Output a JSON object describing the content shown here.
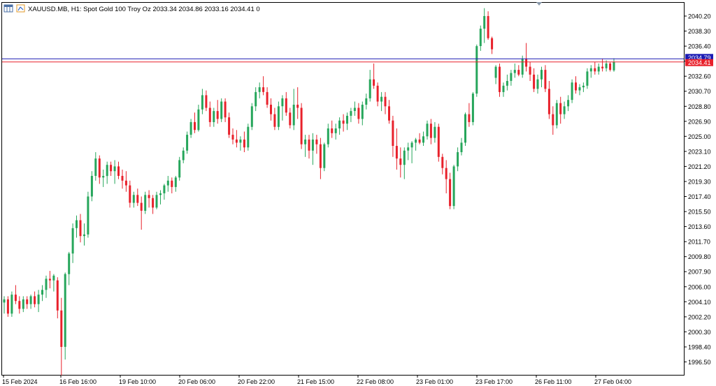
{
  "header": {
    "symbol_line": "XAUUSD.MB, H1:  Spot Gold 100 Troy Oz  2033.34 2034.86 2033.16 2034.41  0",
    "icon": "chart-window-icon"
  },
  "colors": {
    "bull": "#26a65b",
    "bear": "#e8212b",
    "ask_line": "#1c1cb4",
    "bid_line": "#e8212b",
    "axis": "#000000",
    "background": "#ffffff"
  },
  "chart_data": {
    "type": "candlestick",
    "symbol": "XAUUSD.MB",
    "timeframe": "H1",
    "description": "Spot Gold 100 Troy Oz",
    "ohlc_last": {
      "open": 2033.34,
      "high": 2034.86,
      "low": 2033.16,
      "close": 2034.41,
      "volume": 0
    },
    "ask_price": "2034.79",
    "bid_price": "2034.41",
    "ylim": [
      1994.0,
      2042.0
    ],
    "y_ticks": [
      "2040.20",
      "2038.30",
      "2036.40",
      "2034.50",
      "2032.60",
      "2030.70",
      "2028.80",
      "2026.90",
      "2025.00",
      "2023.10",
      "2021.20",
      "2019.30",
      "2017.40",
      "2015.50",
      "2013.60",
      "2011.70",
      "2009.80",
      "2007.90",
      "2006.00",
      "2004.10",
      "2002.20",
      "2000.30",
      "1998.40",
      "1996.50"
    ],
    "x_ticks": [
      "15 Feb 2024",
      "16 Feb 16:00",
      "19 Feb 10:00",
      "20 Feb 06:00",
      "20 Feb 22:00",
      "21 Feb 15:00",
      "22 Feb 08:00",
      "23 Feb 01:00",
      "23 Feb 17:00",
      "26 Feb 11:00",
      "27 Feb 04:00"
    ],
    "candles": [
      [
        2004.0,
        2004.8,
        2002.6,
        2004.4
      ],
      [
        2004.4,
        2004.8,
        2002.2,
        2002.6
      ],
      [
        2002.6,
        2005.4,
        2002.2,
        2005.0
      ],
      [
        2005.0,
        2006.2,
        2003.8,
        2004.2
      ],
      [
        2004.2,
        2004.8,
        2002.6,
        2003.2
      ],
      [
        2003.2,
        2004.8,
        2002.8,
        2004.4
      ],
      [
        2004.4,
        2004.8,
        2003.2,
        2003.8
      ],
      [
        2003.8,
        2005.0,
        2003.2,
        2004.8
      ],
      [
        2004.8,
        2005.4,
        2003.4,
        2003.8
      ],
      [
        2003.8,
        2005.6,
        2002.8,
        2005.0
      ],
      [
        2005.0,
        2006.2,
        2004.2,
        2005.6
      ],
      [
        2005.6,
        2007.4,
        2004.6,
        2007.0
      ],
      [
        2007.0,
        2008.0,
        2005.8,
        2006.8
      ],
      [
        2006.8,
        2007.6,
        2005.4,
        2007.4
      ],
      [
        2006.8,
        2007.2,
        2002.0,
        2003.0
      ],
      [
        2003.0,
        2004.6,
        1994.8,
        1998.4
      ],
      [
        1998.4,
        2007.8,
        1996.8,
        2007.6
      ],
      [
        2007.6,
        2010.4,
        2006.2,
        2010.2
      ],
      [
        2010.2,
        2014.0,
        2009.0,
        2013.4
      ],
      [
        2013.4,
        2015.0,
        2012.2,
        2014.4
      ],
      [
        2014.4,
        2015.2,
        2011.6,
        2012.4
      ],
      [
        2012.4,
        2014.0,
        2011.2,
        2012.6
      ],
      [
        2012.6,
        2018.0,
        2012.2,
        2017.4
      ],
      [
        2017.4,
        2020.6,
        2016.8,
        2020.0
      ],
      [
        2020.0,
        2023.0,
        2019.4,
        2022.2
      ],
      [
        2022.2,
        2022.6,
        2019.0,
        2019.8
      ],
      [
        2019.8,
        2020.8,
        2018.6,
        2020.0
      ],
      [
        2020.0,
        2021.8,
        2019.0,
        2021.4
      ],
      [
        2021.4,
        2021.8,
        2020.0,
        2020.6
      ],
      [
        2020.6,
        2022.0,
        2019.0,
        2021.2
      ],
      [
        2021.2,
        2021.8,
        2019.6,
        2020.0
      ],
      [
        2020.0,
        2020.8,
        2018.4,
        2019.4
      ],
      [
        2019.4,
        2020.6,
        2018.0,
        2018.8
      ],
      [
        2018.8,
        2019.4,
        2016.0,
        2016.6
      ],
      [
        2016.6,
        2018.0,
        2016.0,
        2017.6
      ],
      [
        2017.6,
        2018.4,
        2016.2,
        2016.6
      ],
      [
        2016.6,
        2017.4,
        2013.2,
        2015.6
      ],
      [
        2015.6,
        2018.0,
        2015.2,
        2017.6
      ],
      [
        2017.6,
        2018.2,
        2016.0,
        2017.2
      ],
      [
        2017.2,
        2017.6,
        2015.2,
        2016.0
      ],
      [
        2016.0,
        2018.0,
        2015.8,
        2017.6
      ],
      [
        2017.6,
        2018.2,
        2016.4,
        2017.8
      ],
      [
        2017.8,
        2019.0,
        2017.0,
        2018.8
      ],
      [
        2018.8,
        2020.0,
        2018.0,
        2019.4
      ],
      [
        2019.4,
        2019.8,
        2017.8,
        2018.6
      ],
      [
        2018.6,
        2020.0,
        2018.0,
        2019.8
      ],
      [
        2019.8,
        2022.4,
        2019.4,
        2022.0
      ],
      [
        2022.0,
        2023.6,
        2021.6,
        2023.2
      ],
      [
        2023.2,
        2025.6,
        2022.8,
        2025.2
      ],
      [
        2025.2,
        2027.2,
        2024.8,
        2026.8
      ],
      [
        2026.8,
        2028.0,
        2025.4,
        2025.8
      ],
      [
        2025.8,
        2029.0,
        2025.6,
        2028.4
      ],
      [
        2028.4,
        2031.0,
        2027.8,
        2030.2
      ],
      [
        2030.2,
        2030.8,
        2028.2,
        2028.6
      ],
      [
        2028.6,
        2029.4,
        2026.2,
        2026.8
      ],
      [
        2026.8,
        2028.6,
        2026.2,
        2028.2
      ],
      [
        2028.2,
        2029.6,
        2026.6,
        2027.2
      ],
      [
        2027.2,
        2029.8,
        2026.8,
        2029.4
      ],
      [
        2029.4,
        2029.8,
        2026.8,
        2027.4
      ],
      [
        2027.4,
        2028.0,
        2024.8,
        2025.2
      ],
      [
        2025.2,
        2026.0,
        2024.0,
        2024.6
      ],
      [
        2024.6,
        2025.8,
        2023.6,
        2024.2
      ],
      [
        2024.2,
        2025.0,
        2023.2,
        2024.6
      ],
      [
        2024.6,
        2025.6,
        2023.0,
        2023.6
      ],
      [
        2023.6,
        2026.6,
        2023.2,
        2026.2
      ],
      [
        2026.2,
        2029.2,
        2025.8,
        2028.8
      ],
      [
        2028.8,
        2031.2,
        2028.2,
        2030.6
      ],
      [
        2030.6,
        2031.8,
        2029.8,
        2031.2
      ],
      [
        2031.2,
        2032.6,
        2030.2,
        2030.6
      ],
      [
        2030.6,
        2031.2,
        2028.6,
        2029.0
      ],
      [
        2029.0,
        2029.8,
        2027.0,
        2027.8
      ],
      [
        2027.8,
        2028.6,
        2025.8,
        2026.2
      ],
      [
        2026.2,
        2029.4,
        2025.8,
        2028.8
      ],
      [
        2028.8,
        2030.2,
        2027.0,
        2029.8
      ],
      [
        2029.8,
        2030.6,
        2027.6,
        2028.0
      ],
      [
        2028.0,
        2028.6,
        2026.0,
        2026.4
      ],
      [
        2026.4,
        2031.0,
        2025.8,
        2029.0
      ],
      [
        2029.0,
        2031.2,
        2027.2,
        2028.6
      ],
      [
        2028.6,
        2029.2,
        2023.4,
        2024.0
      ],
      [
        2024.0,
        2025.2,
        2022.4,
        2024.6
      ],
      [
        2024.6,
        2025.2,
        2022.2,
        2023.2
      ],
      [
        2023.2,
        2025.4,
        2021.4,
        2024.6
      ],
      [
        2024.6,
        2025.2,
        2022.8,
        2024.0
      ],
      [
        2024.0,
        2024.8,
        2019.6,
        2021.0
      ],
      [
        2021.0,
        2024.2,
        2020.6,
        2024.0
      ],
      [
        2024.0,
        2026.6,
        2023.6,
        2026.0
      ],
      [
        2026.0,
        2027.0,
        2024.8,
        2025.4
      ],
      [
        2025.4,
        2026.6,
        2024.6,
        2026.0
      ],
      [
        2026.0,
        2027.4,
        2025.2,
        2027.0
      ],
      [
        2027.0,
        2027.8,
        2025.6,
        2026.6
      ],
      [
        2026.6,
        2028.0,
        2025.8,
        2027.6
      ],
      [
        2027.6,
        2028.6,
        2026.8,
        2028.2
      ],
      [
        2028.2,
        2029.4,
        2027.6,
        2028.6
      ],
      [
        2028.6,
        2029.2,
        2026.6,
        2027.2
      ],
      [
        2027.2,
        2029.4,
        2026.4,
        2029.0
      ],
      [
        2029.0,
        2030.4,
        2028.4,
        2029.8
      ],
      [
        2029.8,
        2033.4,
        2029.4,
        2032.2
      ],
      [
        2032.2,
        2034.2,
        2031.0,
        2031.4
      ],
      [
        2031.4,
        2031.8,
        2028.8,
        2029.4
      ],
      [
        2029.4,
        2030.6,
        2028.2,
        2030.0
      ],
      [
        2030.0,
        2030.6,
        2027.8,
        2028.8
      ],
      [
        2028.8,
        2029.6,
        2026.6,
        2027.0
      ],
      [
        2027.0,
        2027.6,
        2022.4,
        2023.8
      ],
      [
        2023.8,
        2026.0,
        2020.8,
        2022.2
      ],
      [
        2022.2,
        2023.6,
        2019.8,
        2021.4
      ],
      [
        2021.4,
        2023.6,
        2019.6,
        2023.2
      ],
      [
        2023.2,
        2024.2,
        2022.0,
        2023.6
      ],
      [
        2023.6,
        2024.4,
        2021.6,
        2024.2
      ],
      [
        2024.2,
        2024.8,
        2023.2,
        2024.6
      ],
      [
        2024.6,
        2025.4,
        2024.0,
        2024.2
      ],
      [
        2024.2,
        2025.6,
        2023.8,
        2025.0
      ],
      [
        2025.0,
        2027.0,
        2024.6,
        2026.6
      ],
      [
        2026.6,
        2027.2,
        2024.0,
        2024.8
      ],
      [
        2024.8,
        2026.8,
        2024.2,
        2026.2
      ],
      [
        2026.2,
        2026.6,
        2021.8,
        2022.4
      ],
      [
        2022.4,
        2022.8,
        2020.2,
        2021.0
      ],
      [
        2021.0,
        2022.0,
        2017.8,
        2019.6
      ],
      [
        2019.6,
        2020.4,
        2015.8,
        2016.2
      ],
      [
        2016.2,
        2021.4,
        2015.8,
        2021.2
      ],
      [
        2021.2,
        2023.6,
        2020.6,
        2023.0
      ],
      [
        2023.0,
        2024.8,
        2022.6,
        2024.2
      ],
      [
        2024.2,
        2028.0,
        2023.8,
        2027.8
      ],
      [
        2027.8,
        2029.2,
        2026.2,
        2026.8
      ],
      [
        2026.8,
        2030.6,
        2026.4,
        2030.4
      ],
      [
        2030.4,
        2036.6,
        2030.0,
        2036.4
      ],
      [
        2036.4,
        2039.0,
        2035.8,
        2038.6
      ],
      [
        2038.6,
        2041.2,
        2036.8,
        2040.2
      ],
      [
        2040.2,
        2040.8,
        2037.2,
        2037.4
      ],
      [
        2037.4,
        2037.6,
        2035.4,
        2036.0
      ],
      [
        2032.4,
        2034.0,
        2031.6,
        2033.8
      ],
      [
        2033.8,
        2034.2,
        2030.0,
        2030.6
      ],
      [
        2030.6,
        2031.8,
        2030.0,
        2031.4
      ],
      [
        2031.4,
        2032.8,
        2030.8,
        2032.0
      ],
      [
        2032.0,
        2033.4,
        2031.4,
        2033.0
      ],
      [
        2033.0,
        2034.2,
        2032.4,
        2033.4
      ],
      [
        2033.4,
        2034.0,
        2032.6,
        2032.8
      ],
      [
        2032.8,
        2035.2,
        2032.4,
        2034.8
      ],
      [
        2034.8,
        2036.8,
        2033.2,
        2033.8
      ],
      [
        2033.8,
        2034.4,
        2032.0,
        2032.8
      ],
      [
        2032.8,
        2033.6,
        2030.6,
        2031.0
      ],
      [
        2031.0,
        2032.8,
        2030.4,
        2032.2
      ],
      [
        2032.2,
        2033.8,
        2031.2,
        2033.4
      ],
      [
        2033.4,
        2034.0,
        2030.6,
        2031.0
      ],
      [
        2031.0,
        2032.0,
        2027.2,
        2027.8
      ],
      [
        2027.8,
        2028.8,
        2025.2,
        2026.4
      ],
      [
        2026.4,
        2029.6,
        2026.0,
        2029.2
      ],
      [
        2029.2,
        2030.0,
        2026.6,
        2027.8
      ],
      [
        2027.8,
        2029.4,
        2027.2,
        2028.8
      ],
      [
        2028.8,
        2030.2,
        2028.2,
        2029.6
      ],
      [
        2029.6,
        2032.2,
        2029.2,
        2031.8
      ],
      [
        2031.8,
        2032.6,
        2030.4,
        2030.8
      ],
      [
        2030.8,
        2031.6,
        2030.2,
        2031.2
      ],
      [
        2031.2,
        2031.8,
        2030.6,
        2031.4
      ],
      [
        2031.4,
        2033.6,
        2031.0,
        2033.2
      ],
      [
        2033.2,
        2034.0,
        2032.4,
        2033.6
      ],
      [
        2033.6,
        2034.4,
        2032.8,
        2033.2
      ],
      [
        2033.2,
        2034.2,
        2032.8,
        2033.8
      ],
      [
        2033.8,
        2034.8,
        2033.2,
        2033.6
      ],
      [
        2033.6,
        2034.6,
        2033.2,
        2034.2
      ],
      [
        2034.2,
        2034.4,
        2033.2,
        2033.4
      ],
      [
        2033.34,
        2034.86,
        2033.16,
        2034.41
      ]
    ]
  }
}
